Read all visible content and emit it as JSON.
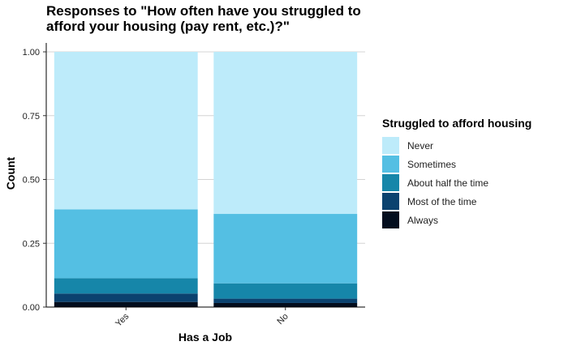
{
  "chart_data": {
    "type": "bar",
    "stacked": true,
    "title": "Responses to \"How often have you struggled to afford your housing (pay rent, etc.)?\"",
    "xlabel": "Has a Job",
    "ylabel": "Count",
    "categories": [
      "Yes",
      "No"
    ],
    "ylim": [
      0,
      1
    ],
    "yticks": [
      "0.00",
      "0.25",
      "0.50",
      "0.75",
      "1.00"
    ],
    "grid": true,
    "legend_title": "Struggled to afford housing",
    "legend_position": "right",
    "series": [
      {
        "name": "Never",
        "color": "#bdebfa",
        "values": [
          0.617,
          0.635
        ]
      },
      {
        "name": "Sometimes",
        "color": "#54bfe3",
        "values": [
          0.27,
          0.272
        ]
      },
      {
        "name": "About half the time",
        "color": "#1686a9",
        "values": [
          0.06,
          0.06
        ]
      },
      {
        "name": "Most of the time",
        "color": "#0b426f",
        "values": [
          0.033,
          0.017
        ]
      },
      {
        "name": "Always",
        "color": "#030e1e",
        "values": [
          0.02,
          0.016
        ]
      }
    ]
  }
}
